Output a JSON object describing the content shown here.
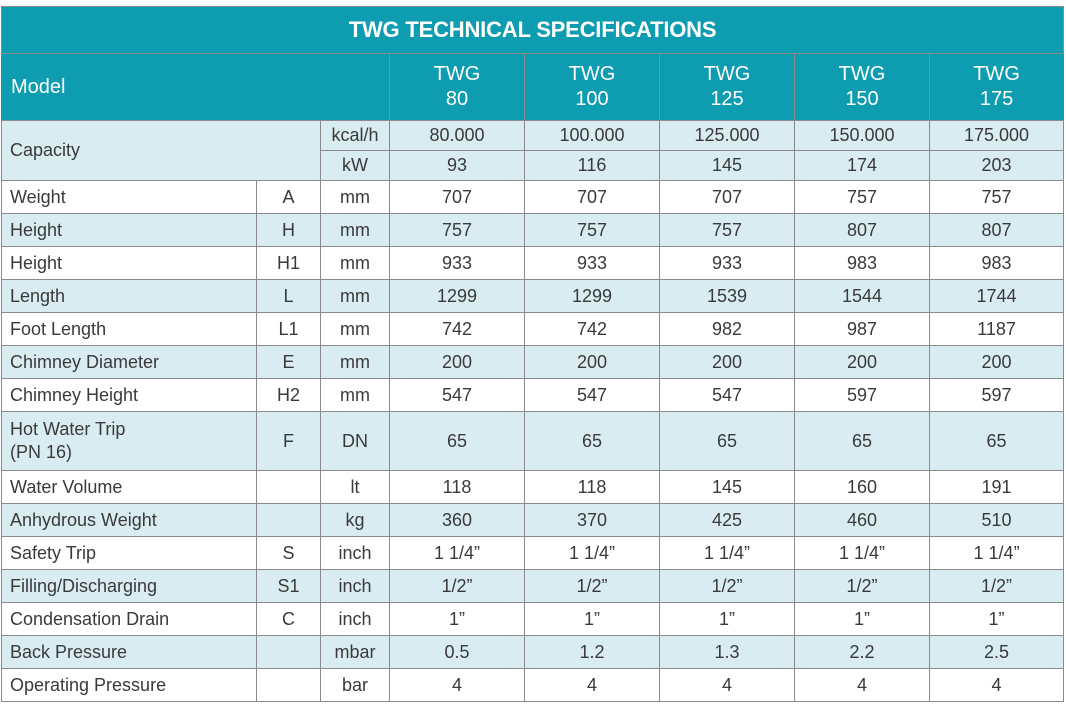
{
  "title": "TWG TECHNICAL SPECIFICATIONS",
  "header": {
    "model_label": "Model",
    "models": [
      {
        "line1": "TWG",
        "line2": "80"
      },
      {
        "line1": "TWG",
        "line2": "100"
      },
      {
        "line1": "TWG",
        "line2": "125"
      },
      {
        "line1": "TWG",
        "line2": "150"
      },
      {
        "line1": "TWG",
        "line2": "175"
      }
    ]
  },
  "capacity": {
    "label": "Capacity",
    "rows": [
      {
        "unit": "kcal/h",
        "values": [
          "80.000",
          "100.000",
          "125.000",
          "150.000",
          "175.000"
        ]
      },
      {
        "unit": "kW",
        "values": [
          "93",
          "116",
          "145",
          "174",
          "203"
        ]
      }
    ]
  },
  "rows": [
    {
      "label": "Weight",
      "code": "A",
      "unit": "mm",
      "values": [
        "707",
        "707",
        "707",
        "757",
        "757"
      ]
    },
    {
      "label": "Height",
      "code": "H",
      "unit": "mm",
      "values": [
        "757",
        "757",
        "757",
        "807",
        "807"
      ]
    },
    {
      "label": "Height",
      "code": "H1",
      "unit": "mm",
      "values": [
        "933",
        "933",
        "933",
        "983",
        "983"
      ]
    },
    {
      "label": "Length",
      "code": "L",
      "unit": "mm",
      "values": [
        "1299",
        "1299",
        "1539",
        "1544",
        "1744"
      ]
    },
    {
      "label": "Foot Length",
      "code": "L1",
      "unit": "mm",
      "values": [
        "742",
        "742",
        "982",
        "987",
        "1187"
      ]
    },
    {
      "label": "Chimney Diameter",
      "code": "E",
      "unit": "mm",
      "values": [
        "200",
        "200",
        "200",
        "200",
        "200"
      ]
    },
    {
      "label": "Chimney Height",
      "code": "H2",
      "unit": "mm",
      "values": [
        "547",
        "547",
        "547",
        "597",
        "597"
      ]
    },
    {
      "label": "Hot Water Trip",
      "label2": "(PN 16)",
      "code": "F",
      "unit": "DN",
      "values": [
        "65",
        "65",
        "65",
        "65",
        "65"
      ]
    },
    {
      "label": "Water Volume",
      "code": "",
      "unit": "lt",
      "values": [
        "118",
        "118",
        "145",
        "160",
        "191"
      ]
    },
    {
      "label": "Anhydrous Weight",
      "code": "",
      "unit": "kg",
      "values": [
        "360",
        "370",
        "425",
        "460",
        "510"
      ]
    },
    {
      "label": "Safety Trip",
      "code": "S",
      "unit": "inch",
      "values": [
        "1 1/4”",
        "1 1/4”",
        "1 1/4”",
        "1 1/4”",
        "1 1/4”"
      ]
    },
    {
      "label": "Filling/Discharging",
      "code": "S1",
      "unit": "inch",
      "values": [
        "1/2”",
        "1/2”",
        "1/2”",
        "1/2”",
        "1/2”"
      ]
    },
    {
      "label": "Condensation Drain",
      "code": "C",
      "unit": "inch",
      "values": [
        "1”",
        "1”",
        "1”",
        "1”",
        "1”"
      ]
    },
    {
      "label": "Back Pressure",
      "code": "",
      "unit": "mbar",
      "values": [
        "0.5",
        "1.2",
        "1.3",
        "2.2",
        "2.5"
      ]
    },
    {
      "label": "Operating Pressure",
      "code": "",
      "unit": "bar",
      "values": [
        "4",
        "4",
        "4",
        "4",
        "4"
      ]
    }
  ],
  "colors": {
    "header_bg": "#0e9cb0",
    "shade_bg": "#d8ecf2",
    "text": "#3a3a3a",
    "grid": "#8a8a8a"
  }
}
